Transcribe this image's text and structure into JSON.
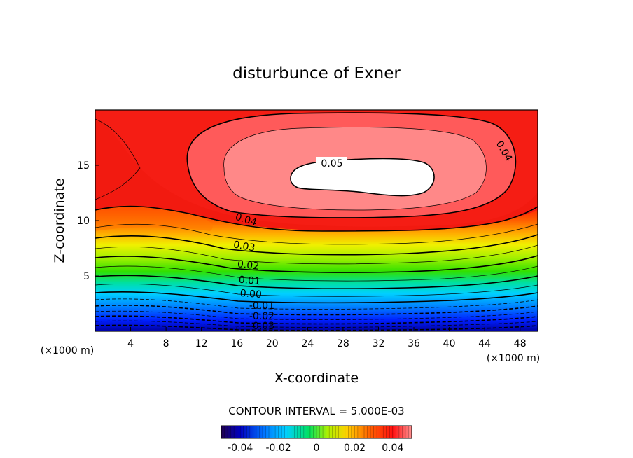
{
  "chart_data": {
    "type": "contour",
    "title": "disturbunce of Exner",
    "xlabel": "X-coordinate",
    "ylabel": "Z-coordinate",
    "x_unit_left": "(×1000 m)",
    "x_unit_right": "(×1000 m)",
    "xlim": [
      0,
      50
    ],
    "ylim": [
      0,
      20
    ],
    "x_ticks": [
      4,
      8,
      12,
      16,
      20,
      24,
      28,
      32,
      36,
      40,
      44,
      48
    ],
    "y_ticks": [
      5,
      10,
      15
    ],
    "contour_interval_text": "CONTOUR INTERVAL = 5.000E-03",
    "contour_interval": 0.005,
    "contour_labels": [
      "0.05",
      "0.04",
      "0.04",
      "0.03",
      "0.02",
      "0.01",
      "0.00",
      "-0.01",
      "-0.02",
      "-0.03"
    ],
    "colorbar": {
      "range": [
        -0.05,
        0.05
      ],
      "ticks": [
        "-0.04",
        "-0.02",
        "0",
        "0.02",
        "0.04"
      ]
    },
    "field_summary": {
      "max_region": {
        "x": [
          22,
          38
        ],
        "z": [
          12,
          16
        ],
        "value_above": 0.05
      },
      "min_value_near_bottom": -0.03
    }
  }
}
